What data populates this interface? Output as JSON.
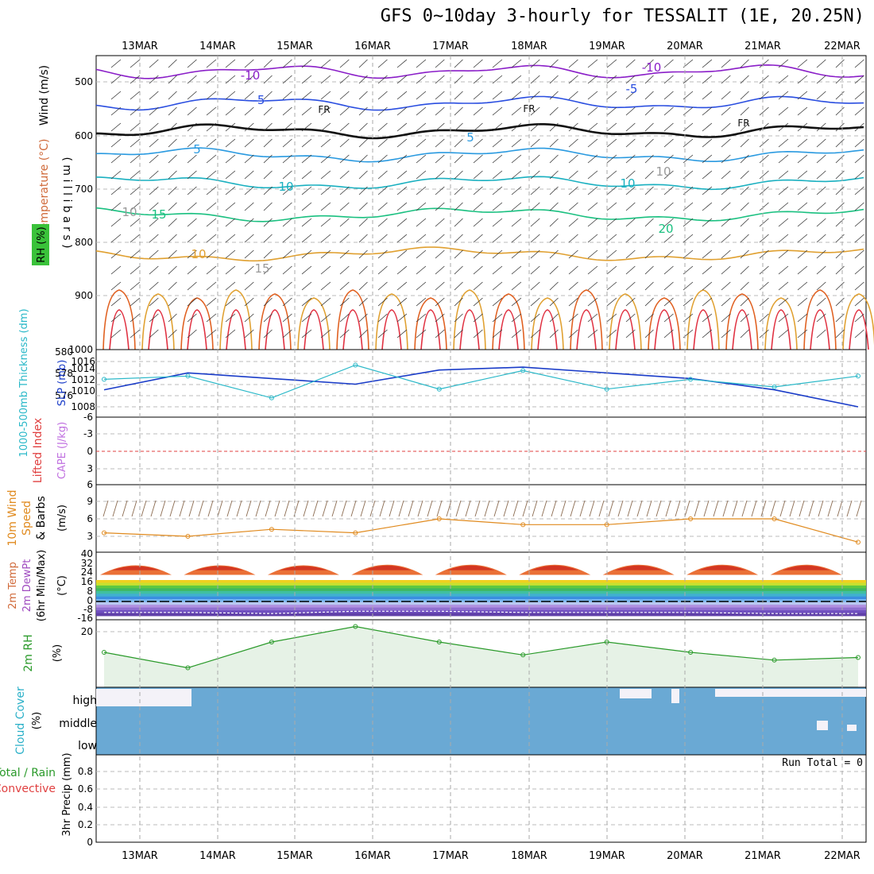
{
  "title": "GFS 0~10day 3-hourly for TESSALIT (1E, 20.25N)",
  "dates": [
    "13MAR",
    "14MAR",
    "15MAR",
    "16MAR",
    "17MAR",
    "18MAR",
    "19MAR",
    "20MAR",
    "21MAR",
    "22MAR"
  ],
  "panels": {
    "upper": {
      "ylabel_pressure": "( m i l l i b a r s )",
      "label_wind": "Wind (m/s)",
      "label_temp": "Temperature (°C)",
      "label_rh": "RH (%)",
      "pressure_ticks": [
        "500",
        "600",
        "700",
        "800",
        "900",
        "1000"
      ],
      "contour_labels": [
        "-10",
        "-10",
        "-5",
        "-5",
        "FR",
        "FR",
        "FR",
        "5",
        "5",
        "10",
        "10",
        "10",
        "15",
        "15",
        "20",
        "10",
        "10"
      ]
    },
    "thickness": {
      "label_thick": "1000-500mb Thickness (dm)",
      "label_slp": "SLP (mb)",
      "left_ticks": [
        "580",
        "578",
        "576"
      ],
      "right_ticks": [
        "1016",
        "1014",
        "1012",
        "1010",
        "1008"
      ]
    },
    "cape": {
      "label_li": "Lifted Index",
      "label_cape": "CAPE (J/kg)",
      "ticks": [
        "-6",
        "-3",
        "0",
        "3",
        "6"
      ]
    },
    "wind10": {
      "label1": "10m Wind",
      "label2": "Speed",
      "label3": "& Barbs",
      "unit": "(m/s)",
      "ticks": [
        "9",
        "6",
        "3"
      ]
    },
    "temp2m": {
      "label1": "2m Temp",
      "label2": "2m DewPt",
      "label3": "(6hr Min/Max)",
      "unit": "(°C)",
      "ticks": [
        "40",
        "32",
        "24",
        "16",
        "8",
        "0",
        "-8",
        "-16"
      ]
    },
    "rh2m": {
      "label": "2m RH",
      "unit": "(%)",
      "ticks": [
        "20"
      ]
    },
    "cloud": {
      "label": "Cloud Cover",
      "unit": "(%)",
      "levels": [
        "high",
        "middle",
        "low"
      ]
    },
    "precip": {
      "label1": "Total / Rain",
      "label2": "Convective",
      "label3": "3hr Precip (mm)",
      "run_total": "Run Total = 0",
      "ticks": [
        "0.8",
        "0.6",
        "0.4",
        "0.2",
        "0"
      ]
    }
  },
  "colors": {
    "slp": "#1a3cc8",
    "thickness": "#2ab8c8",
    "wind_speed": "#e08a1e",
    "rh": "#2a9a2a",
    "cloud": "#6aa9d4",
    "li": "#e04040",
    "cape": "#c070e0"
  },
  "chart_data": [
    {
      "type": "line",
      "title": "1000-500mb Thickness (dm) / SLP (mb)",
      "x": [
        "13MAR",
        "14MAR",
        "15MAR",
        "16MAR",
        "17MAR",
        "18MAR",
        "19MAR",
        "20MAR",
        "21MAR",
        "22MAR"
      ],
      "series": [
        {
          "name": "SLP (mb)",
          "values": [
            1011,
            1014,
            1013,
            1012,
            1014.5,
            1015,
            1014,
            1013,
            1011,
            1008
          ]
        },
        {
          "name": "1000-500mb Thickness (dm)",
          "values": [
            577.5,
            577.8,
            575.8,
            578.8,
            576.6,
            578.3,
            576.6,
            577.5,
            576.8,
            577.8
          ]
        }
      ]
    },
    {
      "type": "line",
      "title": "10m Wind Speed (m/s)",
      "x": [
        "13MAR",
        "14MAR",
        "15MAR",
        "16MAR",
        "17MAR",
        "18MAR",
        "19MAR",
        "20MAR",
        "21MAR",
        "22MAR"
      ],
      "series": [
        {
          "name": "Speed",
          "values": [
            3.6,
            3.0,
            4.2,
            3.6,
            6.0,
            5.0,
            5.0,
            6.0,
            6.0,
            2.0
          ]
        }
      ],
      "ylim": [
        0,
        10
      ]
    },
    {
      "type": "area",
      "title": "2m Temp (°C)",
      "x": [
        "13MAR",
        "14MAR",
        "15MAR",
        "16MAR",
        "17MAR",
        "18MAR",
        "19MAR",
        "20MAR",
        "21MAR",
        "22MAR"
      ],
      "series": [
        {
          "name": "2m Temp max",
          "values": [
            33,
            33,
            33,
            34,
            34,
            34,
            34,
            34,
            34,
            37
          ]
        },
        {
          "name": "2m Temp min",
          "values": [
            22,
            22,
            22,
            21,
            21,
            21,
            22,
            22,
            22,
            24
          ]
        },
        {
          "name": "2m DewPt",
          "values": [
            -10,
            -10,
            -11,
            -9,
            -9,
            -10,
            -10,
            -10,
            -11,
            -11
          ]
        }
      ],
      "ylim": [
        -16,
        40
      ]
    },
    {
      "type": "line",
      "title": "2m RH (%)",
      "x": [
        "13MAR",
        "14MAR",
        "15MAR",
        "16MAR",
        "17MAR",
        "18MAR",
        "19MAR",
        "20MAR",
        "21MAR",
        "22MAR"
      ],
      "series": [
        {
          "name": "2m RH",
          "values": [
            12,
            6,
            16,
            22,
            16,
            11,
            16,
            12,
            9,
            10
          ]
        }
      ],
      "ylim": [
        0,
        25
      ]
    },
    {
      "type": "line",
      "title": "3hr Precip (mm)",
      "x": [
        "13MAR",
        "14MAR",
        "15MAR",
        "16MAR",
        "17MAR",
        "18MAR",
        "19MAR",
        "20MAR",
        "21MAR",
        "22MAR"
      ],
      "series": [
        {
          "name": "Total / Rain",
          "values": [
            0,
            0,
            0,
            0,
            0,
            0,
            0,
            0,
            0,
            0
          ]
        }
      ],
      "ylim": [
        0,
        1
      ]
    }
  ]
}
